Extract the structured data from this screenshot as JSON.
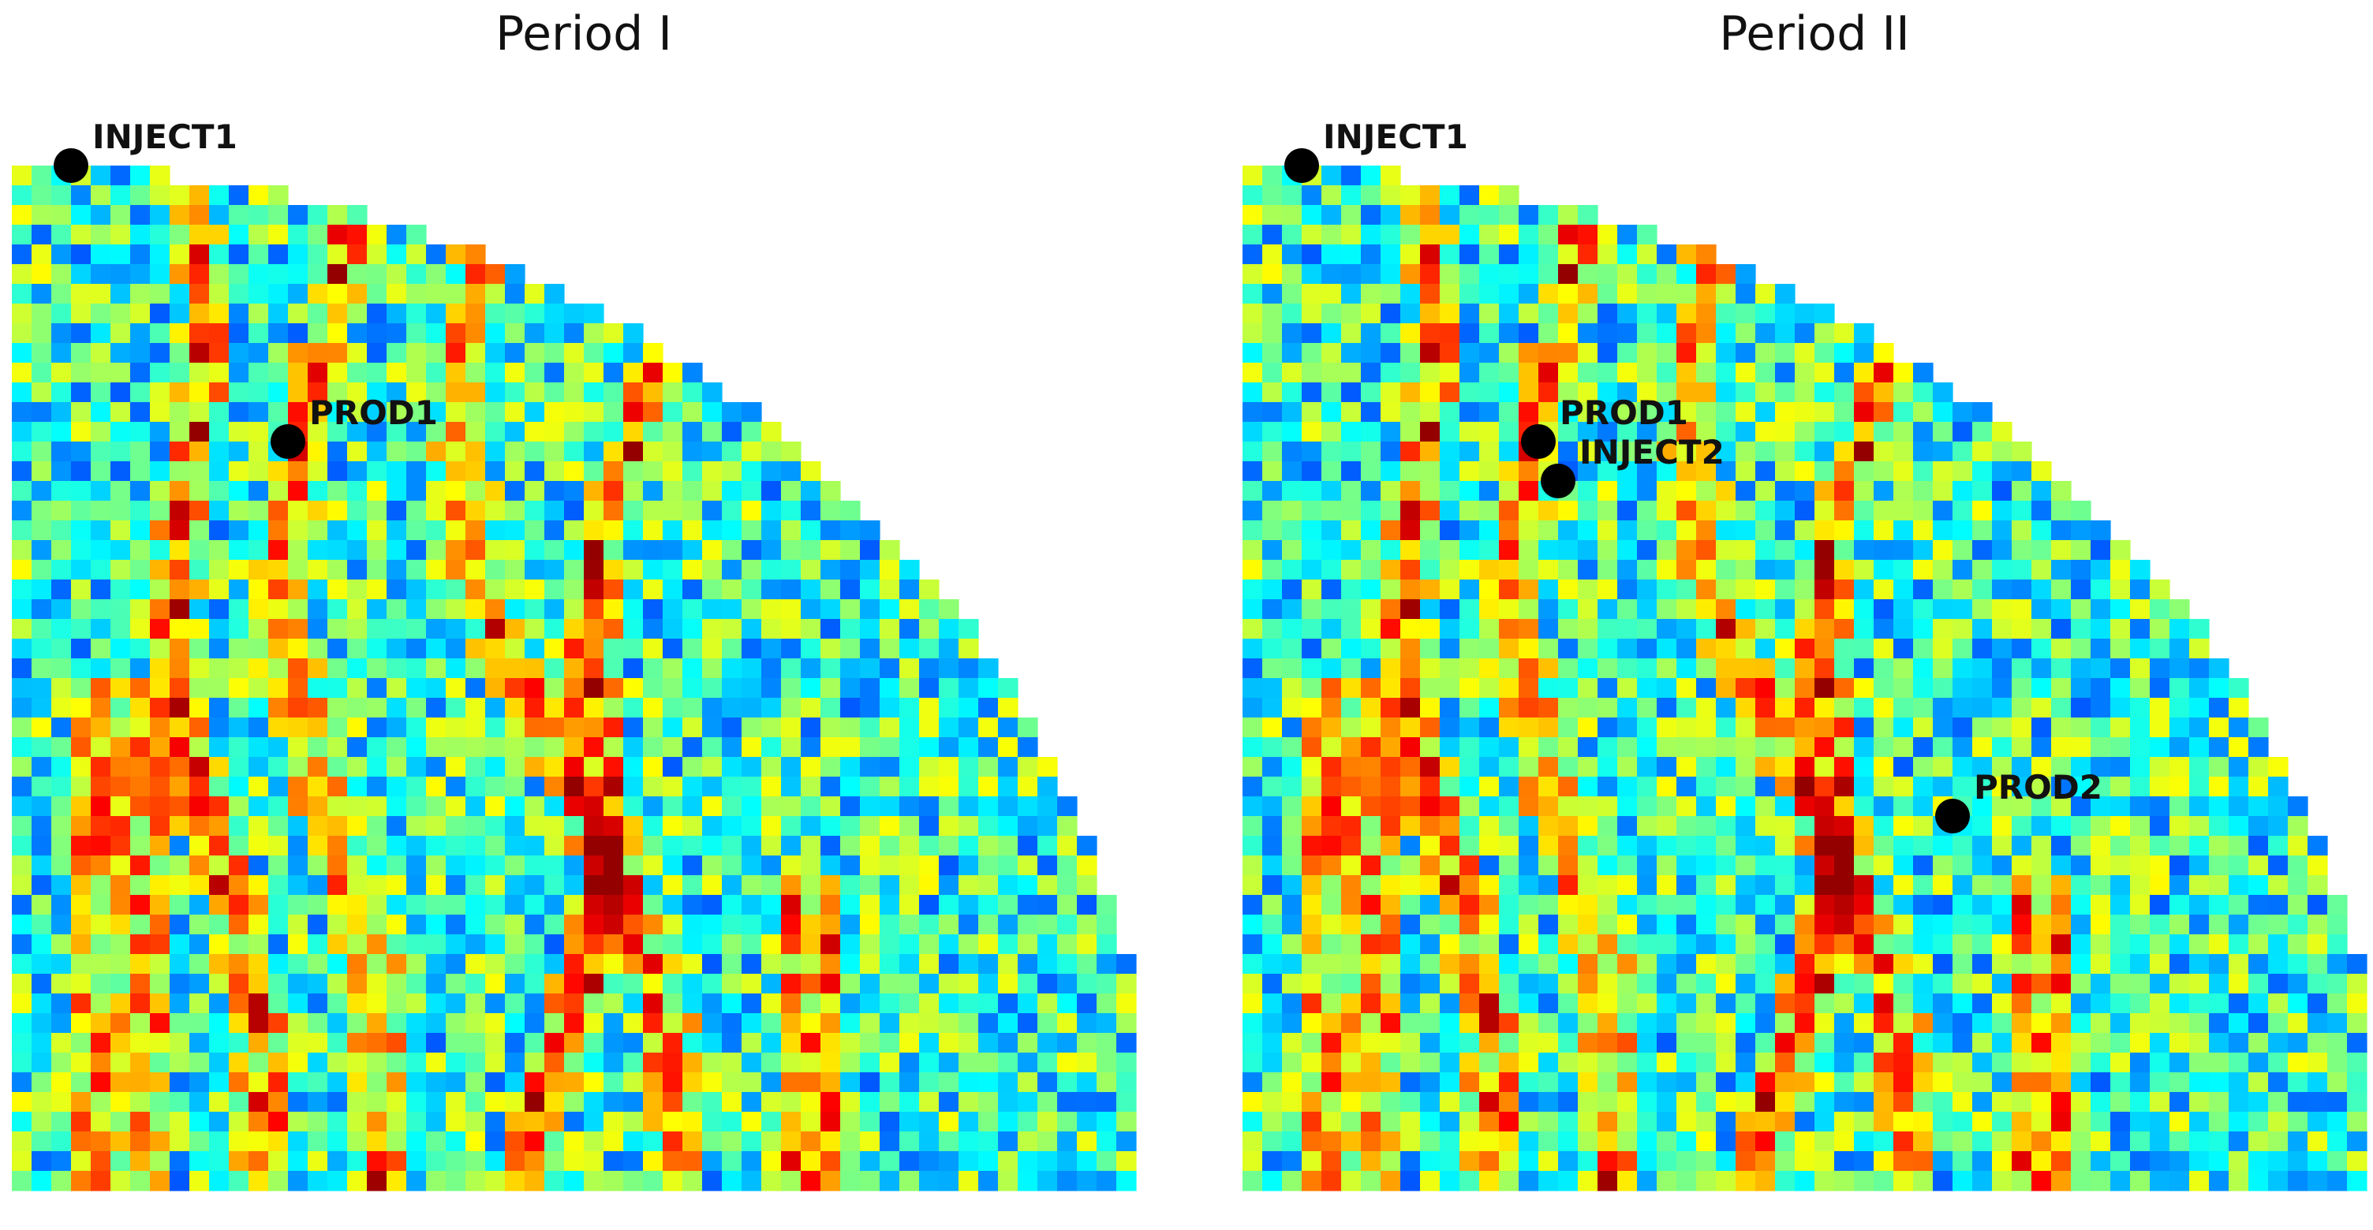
{
  "chart_data": [
    {
      "type": "heatmap",
      "title": "Period I",
      "colormap": "jet",
      "axes": "off",
      "wells": [
        {
          "name": "INJECT1",
          "col": 3,
          "row": 3
        },
        {
          "name": "PROD1",
          "col": 14,
          "row": 17
        }
      ]
    },
    {
      "type": "heatmap",
      "title": "Period II",
      "colormap": "jet",
      "axes": "off",
      "wells": [
        {
          "name": "INJECT1",
          "col": 3,
          "row": 3
        },
        {
          "name": "PROD1",
          "col": 15,
          "row": 17
        },
        {
          "name": "INJECT2",
          "col": 16,
          "row": 19
        },
        {
          "name": "PROD2",
          "col": 36,
          "row": 36
        }
      ]
    }
  ],
  "colors": {
    "well_marker": "#000000",
    "background": "#ffffff",
    "jet_low": "#00007f",
    "jet_mid": "#7fff7f",
    "jet_high": "#7f0000"
  }
}
